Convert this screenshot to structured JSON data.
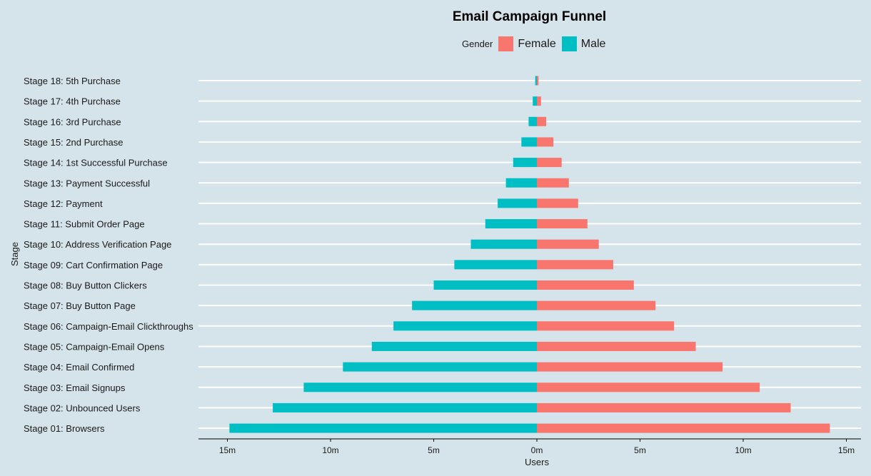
{
  "chart_data": {
    "type": "bar",
    "orientation": "horizontal",
    "title": "Email Campaign Funnel",
    "xlabel": "Users",
    "ylabel": "Stage",
    "legend": {
      "title": "Gender",
      "placement": "top",
      "entries": [
        {
          "name": "Female",
          "color": "#F8766D"
        },
        {
          "name": "Male",
          "color": "#00BFC4"
        }
      ]
    },
    "xlim": [
      -15000000,
      15000000
    ],
    "x_ticks": [
      {
        "value": -15000000,
        "label": "15m"
      },
      {
        "value": -10000000,
        "label": "10m"
      },
      {
        "value": -5000000,
        "label": "5m"
      },
      {
        "value": 0,
        "label": "0m"
      },
      {
        "value": 5000000,
        "label": "5m"
      },
      {
        "value": 10000000,
        "label": "10m"
      },
      {
        "value": 15000000,
        "label": "15m"
      }
    ],
    "grid": true,
    "categories": [
      "Stage 01: Browsers",
      "Stage 02: Unbounced Users",
      "Stage 03: Email Signups",
      "Stage 04: Email Confirmed",
      "Stage 05: Campaign-Email Opens",
      "Stage 06: Campaign-Email Clickthroughs",
      "Stage 07: Buy Button Page",
      "Stage 08: Buy Button Clickers",
      "Stage 09: Cart Confirmation Page",
      "Stage 10: Address Verification Page",
      "Stage 11: Submit Order Page",
      "Stage 12: Payment",
      "Stage 13: Payment Successful",
      "Stage 14: 1st Successful Purchase",
      "Stage 15: 2nd Purchase",
      "Stage 16: 3rd Purchase",
      "Stage 17: 4th Purchase",
      "Stage 18: 5th Purchase"
    ],
    "series": [
      {
        "name": "Female",
        "color": "#F8766D",
        "values": [
          14200000,
          12300000,
          10800000,
          9000000,
          7700000,
          6650000,
          5750000,
          4700000,
          3700000,
          3000000,
          2450000,
          2000000,
          1550000,
          1200000,
          800000,
          450000,
          200000,
          80000
        ]
      },
      {
        "name": "Male",
        "color": "#00BFC4",
        "values": [
          -14900000,
          -12800000,
          -11300000,
          -9400000,
          -8000000,
          -6950000,
          -6050000,
          -5000000,
          -4000000,
          -3200000,
          -2500000,
          -1900000,
          -1500000,
          -1150000,
          -750000,
          -400000,
          -200000,
          -80000
        ]
      }
    ]
  }
}
